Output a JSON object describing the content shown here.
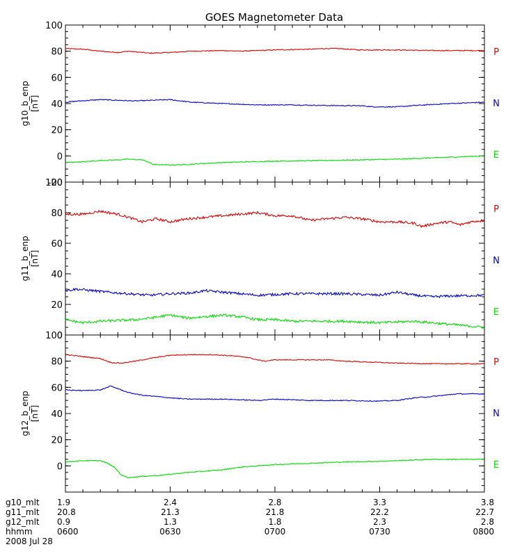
{
  "title": "GOES Magnetometer Data",
  "chart_data": {
    "type": "line",
    "title": "GOES Magnetometer Data",
    "x_range_minutes": [
      0,
      120
    ],
    "x_ticks": [
      0,
      30,
      60,
      90,
      120
    ],
    "grid": false,
    "panels": [
      {
        "ylabel": "g10_b_enp",
        "unit": "[nT]",
        "ylim": [
          -20,
          100
        ],
        "yticks": [
          -20,
          0,
          20,
          40,
          60,
          80,
          100
        ],
        "series": [
          {
            "name": "P",
            "color": "#dd0000",
            "points": [
              [
                0,
                82
              ],
              [
                5,
                81.5
              ],
              [
                10,
                80
              ],
              [
                15,
                79
              ],
              [
                18,
                80
              ],
              [
                24,
                78.5
              ],
              [
                30,
                79
              ],
              [
                36,
                80
              ],
              [
                45,
                80.5
              ],
              [
                50,
                80
              ],
              [
                60,
                81
              ],
              [
                70,
                81.5
              ],
              [
                74,
                82
              ],
              [
                78,
                82
              ],
              [
                84,
                81
              ],
              [
                95,
                81
              ],
              [
                105,
                80.5
              ],
              [
                120,
                80.5
              ]
            ]
          },
          {
            "name": "N",
            "color": "#0000cc",
            "points": [
              [
                0,
                41
              ],
              [
                4,
                42
              ],
              [
                10,
                43
              ],
              [
                20,
                42
              ],
              [
                30,
                43
              ],
              [
                33,
                42
              ],
              [
                36,
                41
              ],
              [
                45,
                40
              ],
              [
                55,
                39
              ],
              [
                65,
                39
              ],
              [
                75,
                38.5
              ],
              [
                85,
                38.3
              ],
              [
                88,
                37.5
              ],
              [
                95,
                37.5
              ],
              [
                100,
                38.5
              ],
              [
                110,
                40
              ],
              [
                120,
                41
              ]
            ]
          },
          {
            "name": "E",
            "color": "#00dd00",
            "points": [
              [
                0,
                -5
              ],
              [
                5,
                -4.5
              ],
              [
                10,
                -3.5
              ],
              [
                15,
                -3
              ],
              [
                18,
                -2.5
              ],
              [
                22,
                -3
              ],
              [
                24,
                -5
              ],
              [
                25,
                -6.5
              ],
              [
                30,
                -7
              ],
              [
                35,
                -6.5
              ],
              [
                45,
                -5
              ],
              [
                60,
                -4
              ],
              [
                75,
                -3.5
              ],
              [
                85,
                -3
              ],
              [
                95,
                -2.5
              ],
              [
                110,
                -1
              ],
              [
                120,
                0
              ]
            ]
          }
        ]
      },
      {
        "ylabel": "g11_b_enp",
        "unit": "[nT]",
        "ylim": [
          0,
          100
        ],
        "yticks": [
          0,
          20,
          40,
          60,
          80,
          100
        ],
        "series": [
          {
            "name": "P",
            "color": "#dd0000",
            "points": [
              [
                0,
                79
              ],
              [
                5,
                79
              ],
              [
                10,
                81
              ],
              [
                15,
                79
              ],
              [
                18,
                77
              ],
              [
                22,
                74
              ],
              [
                26,
                76
              ],
              [
                30,
                74
              ],
              [
                35,
                76
              ],
              [
                40,
                77
              ],
              [
                45,
                78
              ],
              [
                50,
                79
              ],
              [
                55,
                80
              ],
              [
                60,
                78
              ],
              [
                65,
                78
              ],
              [
                70,
                75
              ],
              [
                75,
                76
              ],
              [
                80,
                77
              ],
              [
                85,
                76
              ],
              [
                90,
                74
              ],
              [
                95,
                74
              ],
              [
                100,
                73
              ],
              [
                102,
                71
              ],
              [
                106,
                73
              ],
              [
                110,
                74
              ],
              [
                113,
                72
              ],
              [
                116,
                74
              ],
              [
                120,
                75
              ]
            ]
          },
          {
            "name": "N",
            "color": "#0000cc",
            "points": [
              [
                0,
                29
              ],
              [
                3,
                30
              ],
              [
                8,
                29
              ],
              [
                12,
                28
              ],
              [
                18,
                27
              ],
              [
                24,
                26
              ],
              [
                30,
                27
              ],
              [
                36,
                27.5
              ],
              [
                40,
                29
              ],
              [
                45,
                28
              ],
              [
                50,
                27
              ],
              [
                55,
                26
              ],
              [
                60,
                26.5
              ],
              [
                65,
                27
              ],
              [
                70,
                27
              ],
              [
                75,
                27
              ],
              [
                80,
                27
              ],
              [
                90,
                26
              ],
              [
                95,
                28
              ],
              [
                100,
                26
              ],
              [
                105,
                25
              ],
              [
                110,
                25.5
              ],
              [
                120,
                26
              ]
            ]
          },
          {
            "name": "E",
            "color": "#00dd00",
            "points": [
              [
                0,
                10
              ],
              [
                5,
                8
              ],
              [
                10,
                9
              ],
              [
                20,
                10
              ],
              [
                24,
                11
              ],
              [
                30,
                13
              ],
              [
                35,
                11
              ],
              [
                40,
                12
              ],
              [
                45,
                13
              ],
              [
                50,
                12
              ],
              [
                55,
                10
              ],
              [
                60,
                10
              ],
              [
                65,
                9
              ],
              [
                70,
                9
              ],
              [
                80,
                9
              ],
              [
                90,
                8
              ],
              [
                100,
                9
              ],
              [
                105,
                8
              ],
              [
                110,
                7
              ],
              [
                115,
                6
              ],
              [
                120,
                5
              ]
            ]
          }
        ]
      },
      {
        "ylabel": "g12_b_enp",
        "unit": "[nT]",
        "ylim": [
          -20,
          100
        ],
        "yticks": [
          0,
          20,
          40,
          60,
          80,
          100
        ],
        "series": [
          {
            "name": "P",
            "color": "#dd0000",
            "points": [
              [
                0,
                85
              ],
              [
                5,
                83.5
              ],
              [
                10,
                82
              ],
              [
                13,
                79
              ],
              [
                16,
                78.5
              ],
              [
                20,
                80
              ],
              [
                24,
                82
              ],
              [
                30,
                84.5
              ],
              [
                36,
                85
              ],
              [
                42,
                85
              ],
              [
                45,
                84.5
              ],
              [
                48,
                84
              ],
              [
                52,
                83
              ],
              [
                55,
                81
              ],
              [
                57,
                80
              ],
              [
                60,
                81
              ],
              [
                70,
                81
              ],
              [
                75,
                81
              ],
              [
                80,
                80
              ],
              [
                90,
                79
              ],
              [
                95,
                78.5
              ],
              [
                105,
                78
              ],
              [
                120,
                78
              ]
            ]
          },
          {
            "name": "N",
            "color": "#0000cc",
            "points": [
              [
                0,
                58
              ],
              [
                5,
                57.5
              ],
              [
                10,
                58
              ],
              [
                12,
                60
              ],
              [
                13,
                61
              ],
              [
                15,
                59
              ],
              [
                18,
                56
              ],
              [
                22,
                54
              ],
              [
                26,
                53
              ],
              [
                30,
                52
              ],
              [
                35,
                51
              ],
              [
                45,
                51
              ],
              [
                50,
                50.5
              ],
              [
                55,
                50
              ],
              [
                60,
                51
              ],
              [
                70,
                50
              ],
              [
                80,
                50
              ],
              [
                90,
                49.5
              ],
              [
                95,
                50
              ],
              [
                100,
                52
              ],
              [
                105,
                53
              ],
              [
                112,
                55
              ],
              [
                120,
                55
              ]
            ]
          },
          {
            "name": "E",
            "color": "#00dd00",
            "points": [
              [
                0,
                3
              ],
              [
                5,
                4
              ],
              [
                10,
                4
              ],
              [
                12,
                2
              ],
              [
                14,
                -1
              ],
              [
                15,
                -4
              ],
              [
                16,
                -7
              ],
              [
                18,
                -9
              ],
              [
                22,
                -8
              ],
              [
                28,
                -7
              ],
              [
                35,
                -5
              ],
              [
                45,
                -3
              ],
              [
                50,
                -1
              ],
              [
                55,
                0
              ],
              [
                60,
                1
              ],
              [
                70,
                2
              ],
              [
                80,
                3
              ],
              [
                90,
                3.5
              ],
              [
                95,
                4
              ],
              [
                100,
                4.5
              ],
              [
                105,
                5
              ],
              [
                110,
                5
              ],
              [
                120,
                5
              ]
            ]
          }
        ]
      }
    ],
    "footer": {
      "rows": [
        {
          "label": "g10_mlt",
          "values": [
            "1.9",
            "2.4",
            "2.8",
            "3.3",
            "3.8"
          ]
        },
        {
          "label": "g11_mlt",
          "values": [
            "20.8",
            "21.3",
            "21.8",
            "22.2",
            "22.7"
          ]
        },
        {
          "label": "g12_mlt",
          "values": [
            "0.9",
            "1.3",
            "1.8",
            "2.3",
            "2.8"
          ]
        },
        {
          "label": "hhmm",
          "values": [
            "0600",
            "0630",
            "0700",
            "0730",
            "0800"
          ]
        }
      ],
      "date": "2008 Jul 28"
    }
  }
}
